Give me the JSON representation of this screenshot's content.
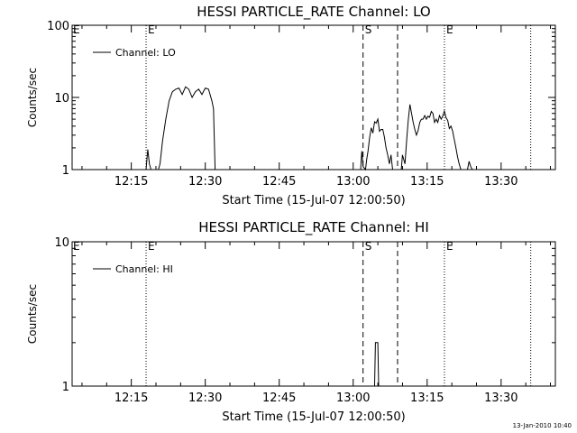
{
  "footer": {
    "timestamp": "13-Jan-2010 10:40"
  },
  "chart_data": [
    {
      "type": "line",
      "title": "HESSI PARTICLE_RATE Channel: LO",
      "xlabel": "Start Time (15-Jul-07 12:00:50)",
      "ylabel": "Counts/sec",
      "y_scale": "log",
      "ylim": [
        1,
        100
      ],
      "y_ticks": [
        1,
        10,
        100
      ],
      "y_tick_labels": [
        "1",
        "10",
        "100"
      ],
      "xlim": [
        "12:03:00",
        "13:41:00"
      ],
      "x_ticks": [
        "12:15",
        "12:30",
        "12:45",
        "13:00",
        "13:15",
        "13:30"
      ],
      "legend": {
        "position": "top-left",
        "entries": [
          "Channel: LO"
        ]
      },
      "grid": false,
      "series": [
        {
          "name": "Channel: LO",
          "color": "#000000",
          "x": [
            "12:18:00",
            "12:18:20",
            "12:18:40",
            "12:19:00",
            "12:20:30",
            "12:20:50",
            "12:21:20",
            "12:22:00",
            "12:22:40",
            "12:23:20",
            "12:24:00",
            "12:24:40",
            "12:25:20",
            "12:26:00",
            "12:26:40",
            "12:27:20",
            "12:28:00",
            "12:28:40",
            "12:29:20",
            "12:30:00",
            "12:30:40",
            "12:31:20",
            "12:31:40",
            "12:32:00",
            "13:01:30",
            "13:01:45",
            "13:02:00",
            "13:02:30",
            "13:02:45",
            "13:03:00",
            "13:03:20",
            "13:03:40",
            "13:04:00",
            "13:04:20",
            "13:04:40",
            "13:05:00",
            "13:05:20",
            "13:05:40",
            "13:06:00",
            "13:06:20",
            "13:06:40",
            "13:07:00",
            "13:07:20",
            "13:07:40",
            "13:08:00",
            "13:09:45",
            "13:10:00",
            "13:10:30",
            "13:10:50",
            "13:11:10",
            "13:11:30",
            "13:11:50",
            "13:12:10",
            "13:12:30",
            "13:12:50",
            "13:13:10",
            "13:13:30",
            "13:13:50",
            "13:14:10",
            "13:14:30",
            "13:14:50",
            "13:15:10",
            "13:15:30",
            "13:15:50",
            "13:16:10",
            "13:16:30",
            "13:16:50",
            "13:17:10",
            "13:17:30",
            "13:17:50",
            "13:18:10",
            "13:18:30",
            "13:18:50",
            "13:19:10",
            "13:19:30",
            "13:19:50",
            "13:20:10",
            "13:20:30",
            "13:20:50",
            "13:21:10",
            "13:21:30",
            "13:21:50",
            "13:22:10",
            "13:22:30",
            "13:22:50",
            "13:23:10",
            "13:23:30",
            "13:23:50",
            "13:24:10",
            "13:24:30"
          ],
          "values": [
            1,
            1.9,
            1.2,
            1,
            1,
            1.2,
            2.5,
            5,
            9,
            12,
            13,
            13.5,
            11,
            14,
            13,
            10,
            12,
            13,
            11,
            13.5,
            13,
            9,
            7,
            1,
            1,
            1.8,
            1.1,
            1,
            1.4,
            1.8,
            2.8,
            3.8,
            3.2,
            4.6,
            4.4,
            5,
            3.4,
            3.6,
            3.6,
            2.8,
            2,
            1.6,
            1.2,
            1.6,
            1,
            1,
            1.6,
            1.2,
            2.5,
            4.8,
            8,
            6,
            4.5,
            3.6,
            3,
            3.5,
            4.5,
            5,
            5,
            5.6,
            5,
            5.5,
            5.3,
            6.4,
            6,
            4.5,
            5,
            4.5,
            5.6,
            5,
            5.5,
            6.5,
            5.2,
            4.8,
            3.7,
            4,
            3.4,
            2.6,
            2,
            1.5,
            1.2,
            1,
            1,
            1,
            1,
            1,
            1.3,
            1.1,
            1,
            1
          ]
        }
      ],
      "markers": [
        {
          "time": "12:18:00",
          "style": "dotted",
          "label": "E"
        },
        {
          "time": "13:02:00",
          "style": "dashed",
          "label": "S"
        },
        {
          "time": "13:09:00",
          "style": "dashed",
          "label": ""
        },
        {
          "time": "13:18:30",
          "style": "dotted",
          "label": "E"
        },
        {
          "time": "13:36:00",
          "style": "dotted",
          "label": ""
        }
      ]
    },
    {
      "type": "line",
      "title": "HESSI PARTICLE_RATE Channel: HI",
      "xlabel": "Start Time (15-Jul-07 12:00:50)",
      "ylabel": "Counts/sec",
      "y_scale": "log",
      "ylim": [
        1,
        10
      ],
      "y_ticks": [
        1,
        10
      ],
      "y_tick_labels": [
        "1",
        "10"
      ],
      "xlim": [
        "12:03:00",
        "13:41:00"
      ],
      "x_ticks": [
        "12:15",
        "12:30",
        "12:45",
        "13:00",
        "13:15",
        "13:30"
      ],
      "legend": {
        "position": "top-left",
        "entries": [
          "Channel: HI"
        ]
      },
      "grid": false,
      "series": [
        {
          "name": "Channel: HI",
          "color": "#000000",
          "x": [
            "13:04:20",
            "13:04:30",
            "13:05:00",
            "13:05:10"
          ],
          "values": [
            1,
            2,
            2,
            1
          ]
        }
      ],
      "markers": [
        {
          "time": "12:18:00",
          "style": "dotted",
          "label": "E"
        },
        {
          "time": "13:02:00",
          "style": "dashed",
          "label": "S"
        },
        {
          "time": "13:09:00",
          "style": "dashed",
          "label": ""
        },
        {
          "time": "13:18:30",
          "style": "dotted",
          "label": "E"
        },
        {
          "time": "13:36:00",
          "style": "dotted",
          "label": ""
        }
      ]
    }
  ]
}
